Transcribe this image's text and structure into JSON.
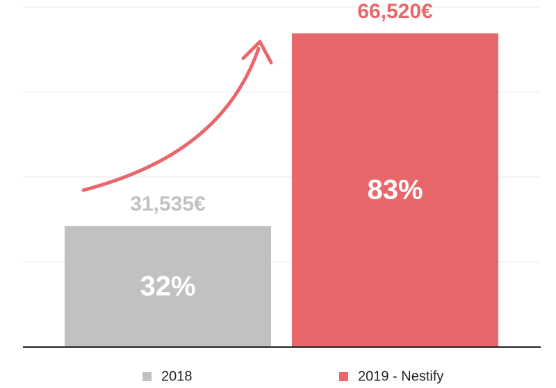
{
  "chart_data": {
    "type": "bar",
    "series": [
      {
        "name": "2018",
        "color": "#c1c1c1",
        "values": [
          32
        ],
        "value_labels": [
          "32%"
        ],
        "totals": [
          "31,535€"
        ]
      },
      {
        "name": "2019 - Nestify",
        "color": "#e8676a",
        "values": [
          83
        ],
        "value_labels": [
          "83%"
        ],
        "totals": [
          "66,520€"
        ]
      }
    ],
    "ylim": [
      0,
      90
    ],
    "yticks": [
      0,
      22.5,
      45,
      67.5,
      90
    ],
    "grid": true
  }
}
